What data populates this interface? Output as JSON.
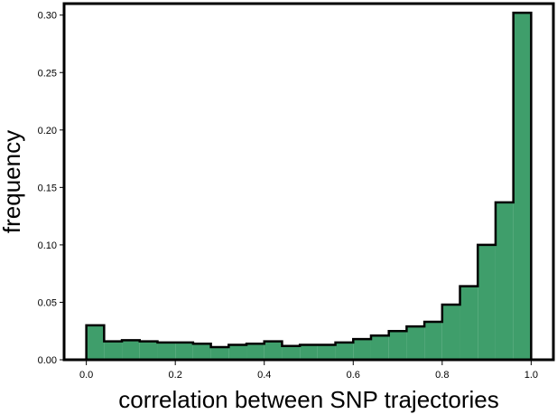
{
  "chart_data": {
    "type": "bar",
    "xlabel": "correlation between SNP trajectories",
    "ylabel": "frequency",
    "xlim": [
      -0.05,
      1.05
    ],
    "ylim": [
      0,
      0.31
    ],
    "bin_width": 0.04,
    "bin_edges": [
      0.0,
      0.04,
      0.08,
      0.12,
      0.16,
      0.2,
      0.24,
      0.28,
      0.32,
      0.36,
      0.4,
      0.44,
      0.48,
      0.52,
      0.56,
      0.6,
      0.64,
      0.68,
      0.72,
      0.76,
      0.8,
      0.84,
      0.88,
      0.92,
      0.96,
      1.0
    ],
    "values": [
      0.03,
      0.016,
      0.017,
      0.016,
      0.015,
      0.015,
      0.014,
      0.011,
      0.013,
      0.014,
      0.016,
      0.012,
      0.013,
      0.013,
      0.015,
      0.018,
      0.021,
      0.025,
      0.029,
      0.033,
      0.048,
      0.064,
      0.1,
      0.137,
      0.302
    ],
    "x_ticks": [
      "0.0",
      "0.2",
      "0.4",
      "0.6",
      "0.8",
      "1.0"
    ],
    "x_tick_values": [
      0.0,
      0.2,
      0.4,
      0.6,
      0.8,
      1.0
    ],
    "y_ticks": [
      "0.00",
      "0.05",
      "0.10",
      "0.15",
      "0.20",
      "0.25",
      "0.30"
    ],
    "y_tick_values": [
      0.0,
      0.05,
      0.1,
      0.15,
      0.2,
      0.25,
      0.3
    ],
    "bar_color": "#3f9e6b",
    "edge_color": "#000000",
    "grid": false,
    "legend": "none"
  }
}
